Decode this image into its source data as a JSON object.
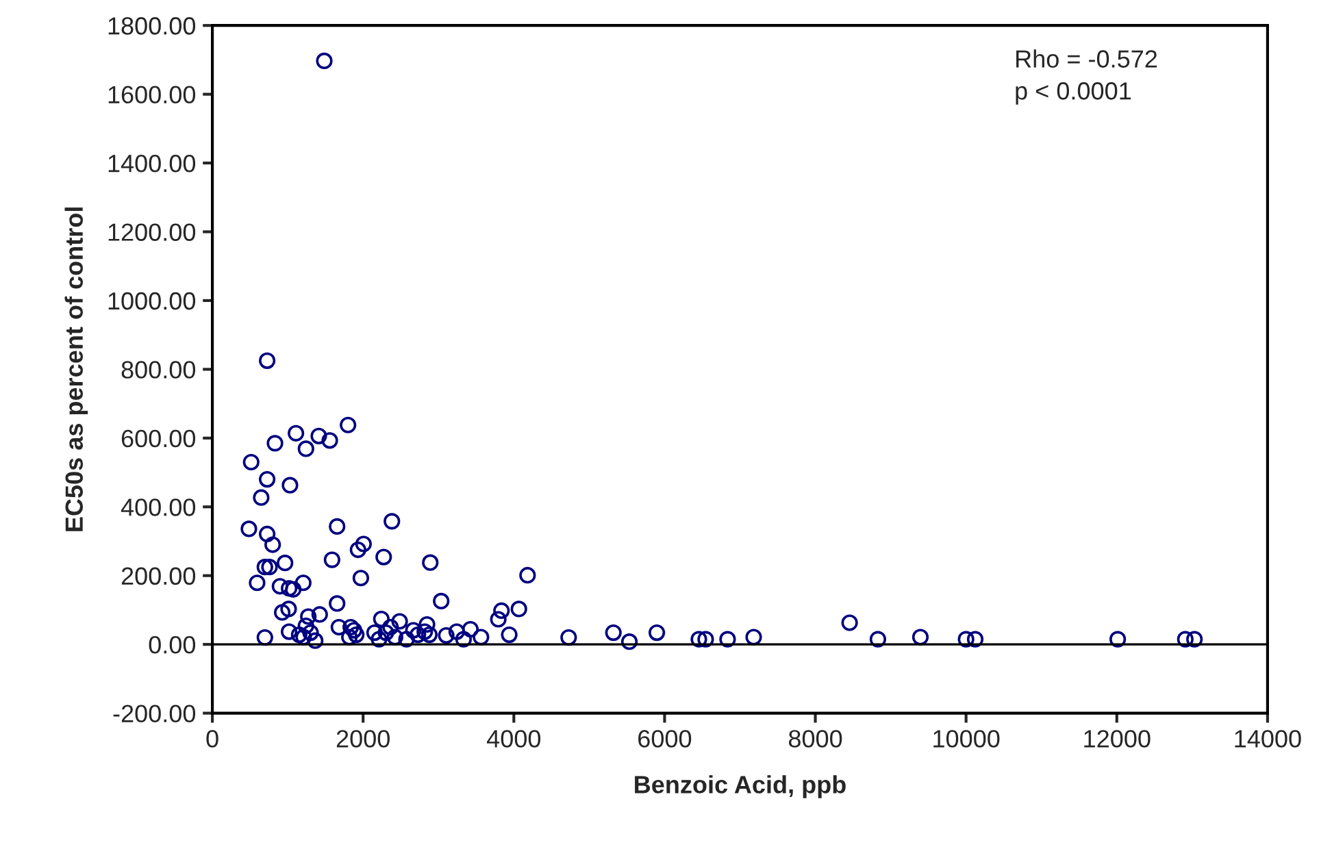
{
  "chart_data": {
    "type": "scatter",
    "xlabel": "Benzoic Acid, ppb",
    "ylabel": "EC50s as percent of control",
    "annotations": [
      "Rho = -0.572\np < 0.0001"
    ],
    "series": [
      {
        "color": "#000080",
        "marker": "circle",
        "x": [
          1485,
          727,
          1800,
          1109,
          1412,
          1558,
          831,
          1242,
          515,
          727,
          1030,
          648,
          2382,
          1655,
          485,
          727,
          800,
          2006,
          1933,
          964,
          697,
          758,
          1588,
          2273,
          2891,
          1970,
          4182,
          594,
          1206,
          897,
          1018,
          1073,
          1655,
          3036,
          927,
          1012,
          4067,
          3836,
          3794,
          1424,
          1273,
          697,
          1018,
          1152,
          1212,
          1303,
          1364,
          1242,
          1679,
          1836,
          1879,
          1909,
          1818,
          2242,
          2152,
          2212,
          2303,
          2364,
          2485,
          2424,
          2576,
          2667,
          2848,
          2818,
          2879,
          2727,
          3103,
          3242,
          3333,
          3424,
          3564,
          3939,
          4727,
          5321,
          5533,
          5897,
          6455,
          6545,
          6836,
          7182,
          8455,
          8830,
          9394,
          10000,
          10121,
          12012,
          12909,
          13030
        ],
        "values": [
          1697,
          825,
          638,
          614,
          606,
          593,
          585,
          569,
          530,
          480,
          463,
          427,
          358,
          343,
          336,
          321,
          290,
          292,
          275,
          237,
          225,
          225,
          246,
          254,
          238,
          193,
          201,
          179,
          179,
          169,
          163,
          160,
          119,
          126,
          93,
          103,
          103,
          98,
          73,
          87,
          81,
          20,
          37,
          28,
          21,
          34,
          11,
          54,
          50,
          50,
          41,
          28,
          21,
          74,
          34,
          15,
          34,
          50,
          67,
          21,
          15,
          41,
          58,
          37,
          28,
          28,
          26,
          37,
          15,
          44,
          21,
          28,
          20,
          34,
          8,
          34,
          15,
          15,
          15,
          21,
          63,
          15,
          21,
          15,
          15,
          15,
          15,
          15
        ]
      }
    ],
    "xlim": [
      0,
      14000
    ],
    "xticks": [
      0,
      2000,
      4000,
      6000,
      8000,
      10000,
      12000,
      14000
    ],
    "ylim": [
      -200,
      1800
    ],
    "yticks": [
      {
        "value": -200,
        "label": "-200.00"
      },
      {
        "value": 0,
        "label": "0.00"
      },
      {
        "value": 200,
        "label": "200.00"
      },
      {
        "value": 400,
        "label": "400.00"
      },
      {
        "value": 600,
        "label": "600.00"
      },
      {
        "value": 800,
        "label": "800.00"
      },
      {
        "value": 1000,
        "label": "1000.00"
      },
      {
        "value": 1200,
        "label": "1200.00"
      },
      {
        "value": 1400,
        "label": "1400.00"
      },
      {
        "value": 1600,
        "label": "1600.00"
      },
      {
        "value": 1800,
        "label": "1800.00"
      }
    ],
    "ref_lines": [
      {
        "axis": "y",
        "value": 0,
        "color": "#000000"
      }
    ],
    "grid": false,
    "legend": false
  }
}
